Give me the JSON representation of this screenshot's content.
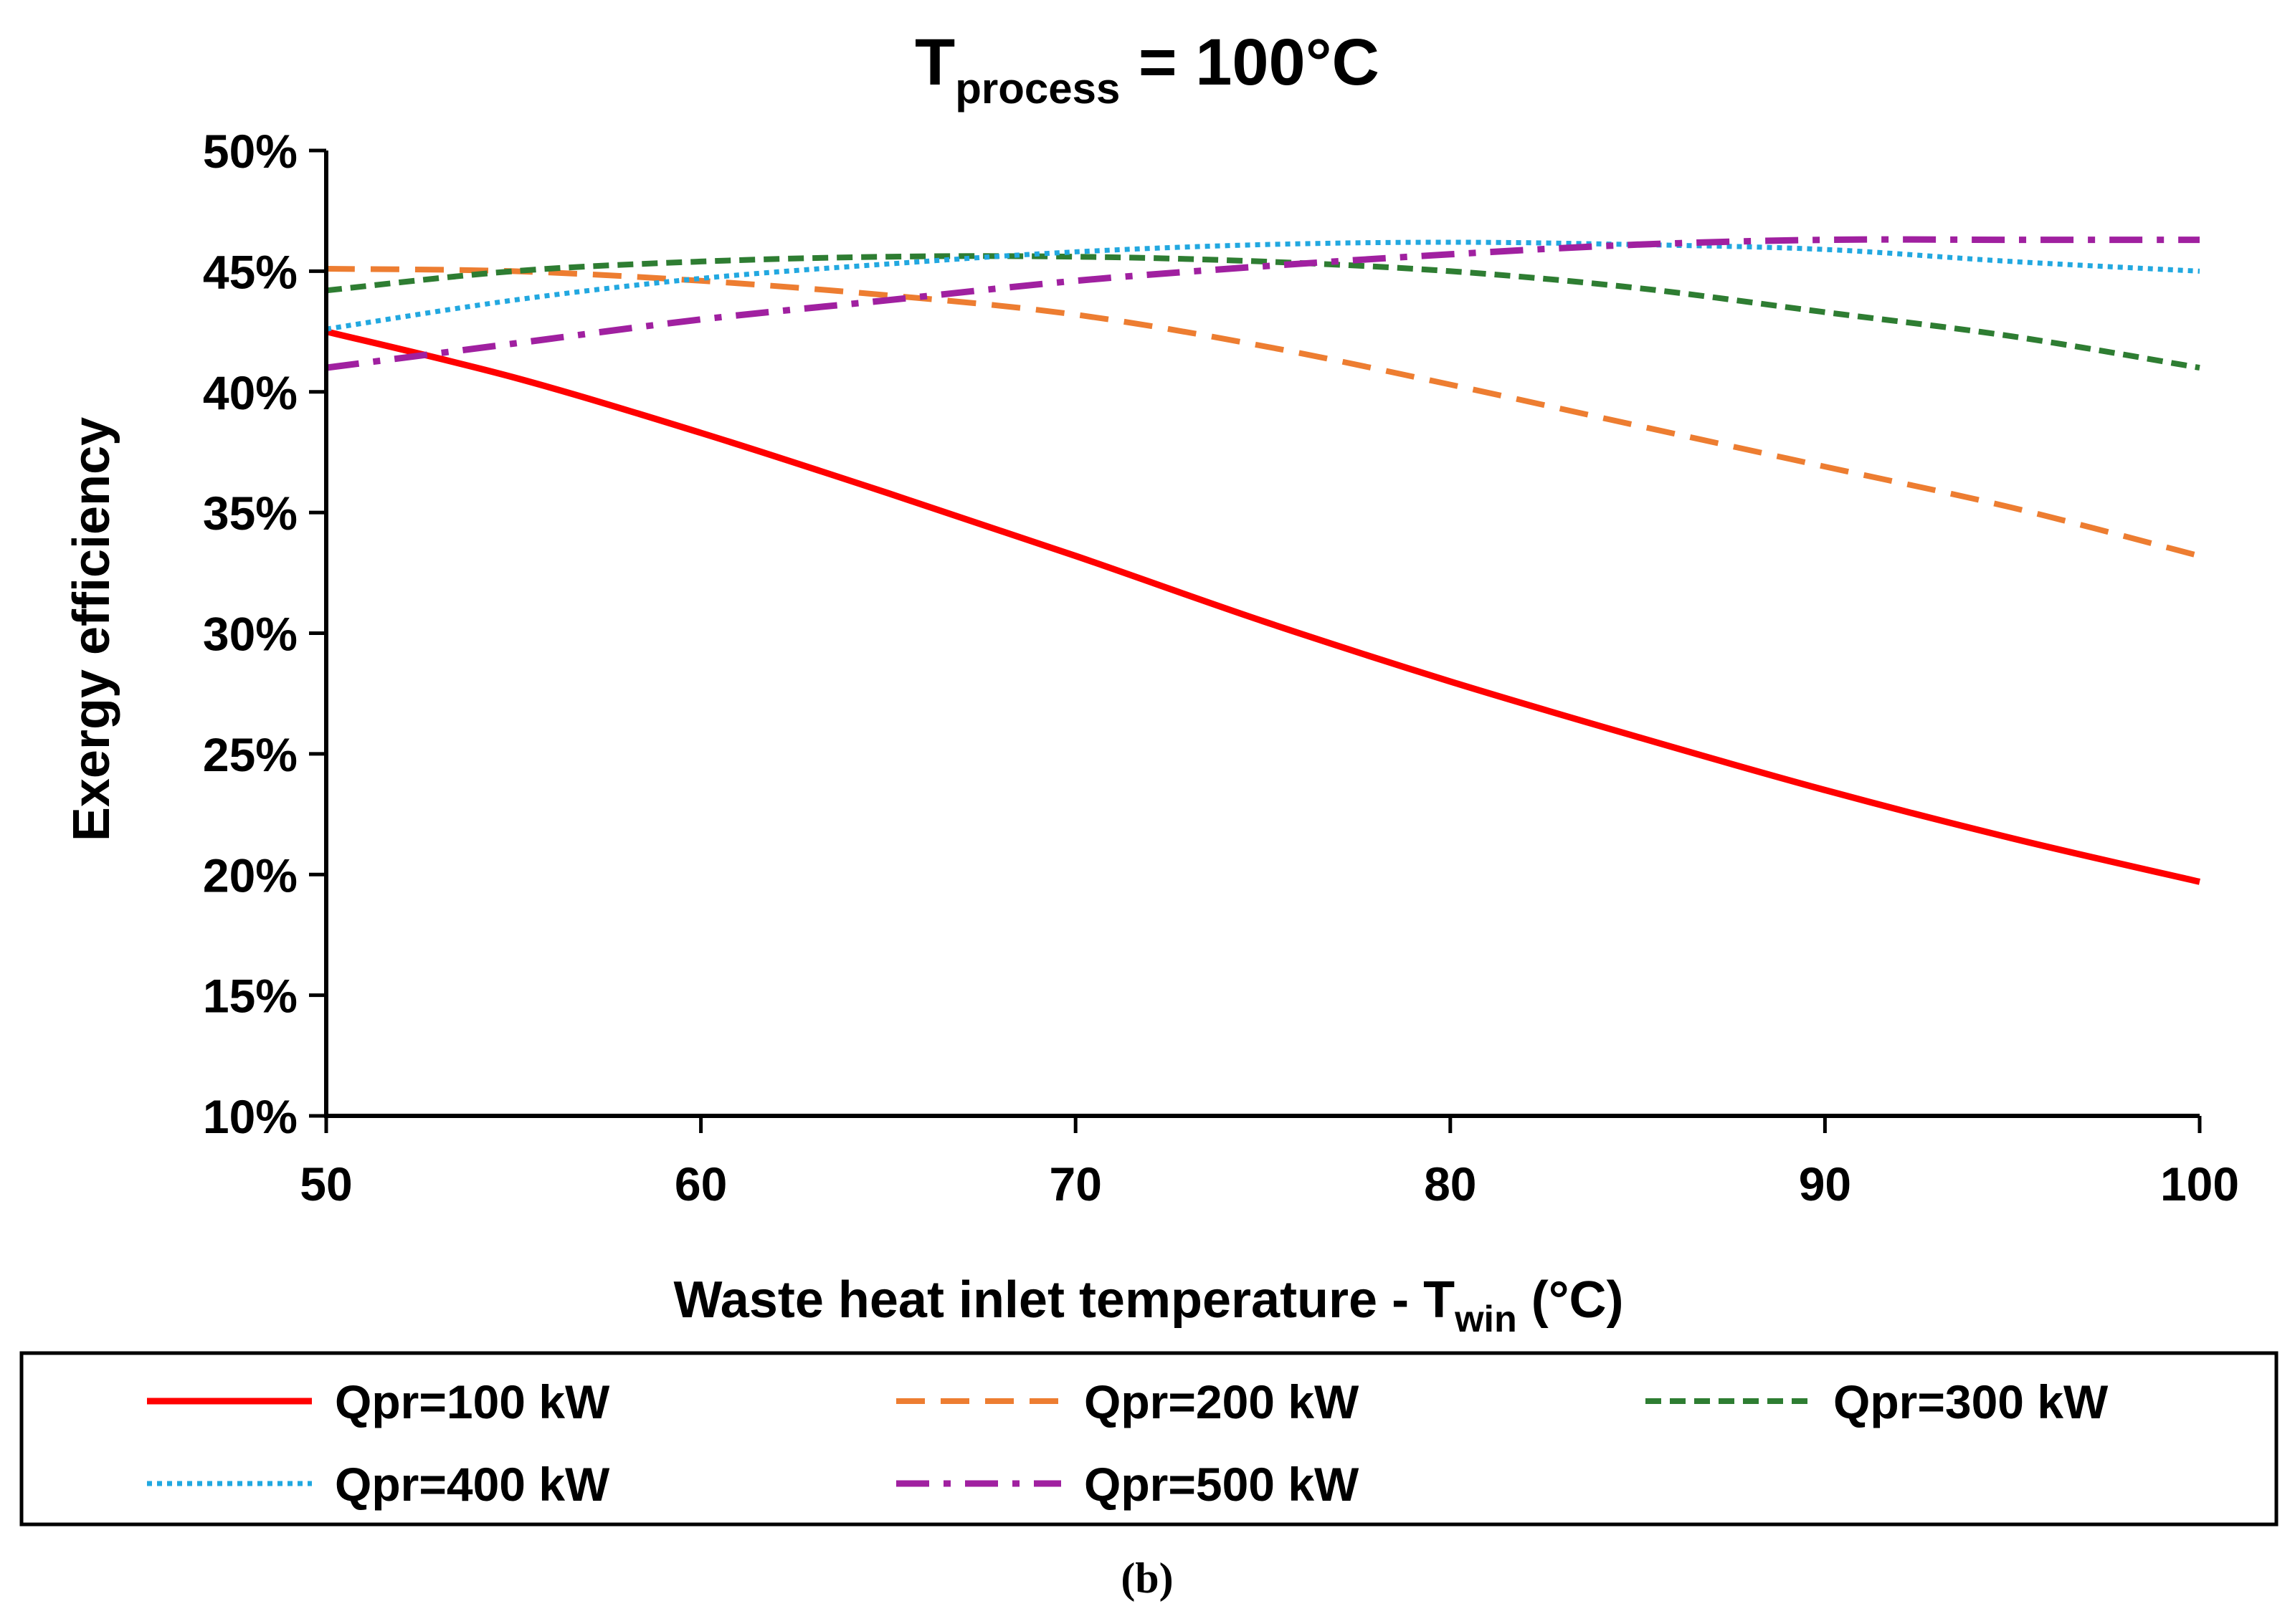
{
  "colors": {
    "axis": "#000000",
    "text": "#000000",
    "background": "#ffffff"
  },
  "caption": "(b)",
  "chart_data": {
    "type": "line",
    "title_main": "T",
    "title_sub": "process",
    "title_rest": " = 100°C",
    "xlabel_main": "Waste heat inlet temperature - T",
    "xlabel_sub": "win",
    "xlabel_rest": " (°C)",
    "ylabel": "Exergy efficiency",
    "xlim": [
      50,
      100
    ],
    "ylim": [
      0.1,
      0.5
    ],
    "xticks": [
      50,
      60,
      70,
      80,
      90,
      100
    ],
    "xtick_labels": [
      "50",
      "60",
      "70",
      "80",
      "90",
      "100"
    ],
    "yticks": [
      0.1,
      0.15,
      0.2,
      0.25,
      0.3,
      0.35,
      0.4,
      0.45,
      0.5
    ],
    "ytick_labels": [
      "10%",
      "15%",
      "20%",
      "25%",
      "30%",
      "35%",
      "40%",
      "45%",
      "50%"
    ],
    "grid": false,
    "legend_position": "bottom",
    "x": [
      50,
      55,
      60,
      65,
      70,
      75,
      80,
      85,
      90,
      95,
      100
    ],
    "series": [
      {
        "name": "Qpr=100 kW",
        "color": "#ff0000",
        "dash": "solid",
        "values": [
          0.425,
          0.406,
          0.383,
          0.358,
          0.332,
          0.305,
          0.28,
          0.257,
          0.235,
          0.215,
          0.197
        ]
      },
      {
        "name": "Qpr=200 kW",
        "color": "#ed7d31",
        "dash": "dashed",
        "values": [
          0.451,
          0.45,
          0.446,
          0.44,
          0.432,
          0.419,
          0.403,
          0.386,
          0.369,
          0.352,
          0.332
        ]
      },
      {
        "name": "Qpr=300 kW",
        "color": "#2e7d32",
        "dash": "short-dashed",
        "values": [
          0.442,
          0.45,
          0.454,
          0.456,
          0.456,
          0.454,
          0.45,
          0.443,
          0.433,
          0.423,
          0.41
        ]
      },
      {
        "name": "Qpr=400 kW",
        "color": "#22a8e0",
        "dash": "dotted",
        "values": [
          0.426,
          0.438,
          0.447,
          0.453,
          0.458,
          0.461,
          0.462,
          0.461,
          0.459,
          0.454,
          0.45
        ]
      },
      {
        "name": "Qpr=500 kW",
        "color": "#a020a0",
        "dash": "dash-dot",
        "values": [
          0.41,
          0.42,
          0.43,
          0.438,
          0.446,
          0.452,
          0.457,
          0.461,
          0.463,
          0.463,
          0.463
        ]
      }
    ]
  }
}
